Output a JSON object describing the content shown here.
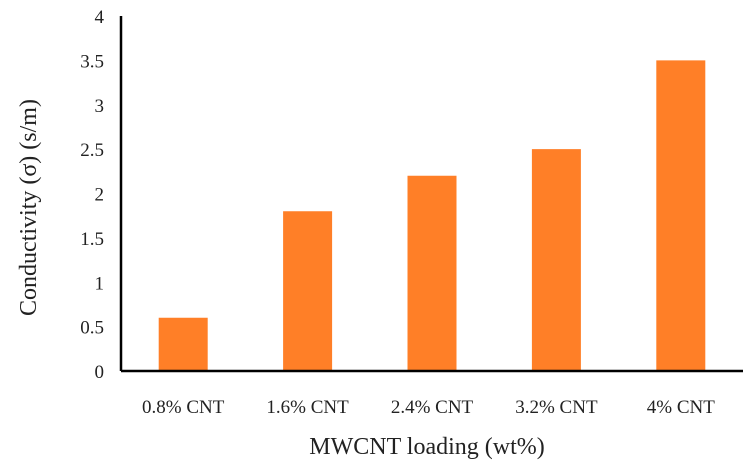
{
  "chart_data": {
    "type": "bar",
    "categories": [
      "0.8% CNT",
      "1.6% CNT",
      "2.4% CNT",
      "3.2% CNT",
      "4% CNT"
    ],
    "values": [
      0.6,
      1.8,
      2.2,
      2.5,
      3.5
    ],
    "xlabel": "MWCNT loading (wt%)",
    "ylabel": "Conductivity (σ) (s/m)",
    "ylim": [
      0,
      4
    ],
    "yticks": [
      "0",
      "0.5",
      "1",
      "1.5",
      "2",
      "2.5",
      "3",
      "3.5",
      "4"
    ],
    "grid": false,
    "legend": "none",
    "bar_color": "#FF7F27",
    "axis_color": "#000000"
  }
}
